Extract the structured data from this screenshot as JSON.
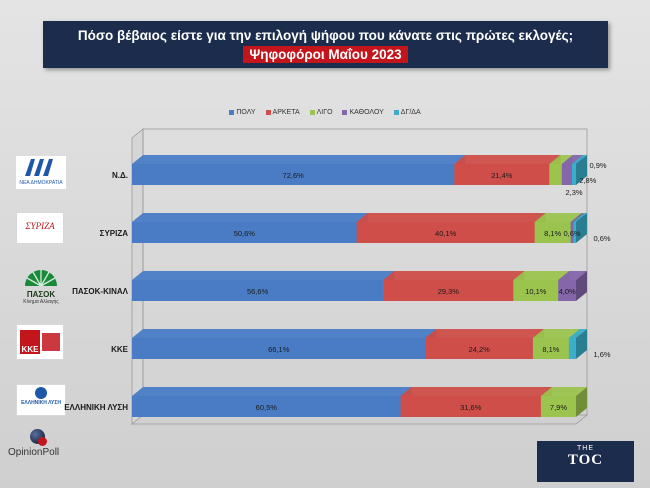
{
  "header": {
    "title": "Πόσο βέβαιος είστε για την επιλογή ψήφου που κάνατε στις πρώτες εκλογές;",
    "subtitle": "Ψηφοφόροι Μαΐου 2023"
  },
  "colors": {
    "title_bg": "#1c2c4c",
    "subtitle_bg": "#c2161c"
  },
  "logos": [
    {
      "icon": "nd-logo-icon",
      "text": "ΝΕΑ ΔΗΜΟΚΡΑΤΙΑ"
    },
    {
      "icon": "syriza-logo-icon",
      "text": "ΣΥΡΙΖΑ"
    },
    {
      "icon": "pasok-logo-icon",
      "text": "ΠΑΣΟΚ",
      "subtext": "Κίνημα Αλλαγής"
    },
    {
      "icon": "kke-logo-icon",
      "text": "ΚΚΕ"
    },
    {
      "icon": "elliniki-lysi-logo-icon",
      "text": "ΕΛΛΗΝΙΚΗ ΛΥΣΗ"
    }
  ],
  "branding": {
    "pollster": "OpinionPoll",
    "toc_small": "THE",
    "toc_main": "TOC"
  },
  "chart_data": {
    "type": "bar",
    "orientation": "horizontal",
    "stacked": true,
    "percent": true,
    "categories": [
      "Ν.Δ.",
      "ΣΥΡΙΖΑ",
      "ΠΑΣΟΚ-ΚΙΝΑΛ",
      "ΚΚΕ",
      "ΕΛΛΗΝΙΚΗ ΛΥΣΗ"
    ],
    "series": [
      {
        "name": "ΠΟΛΥ",
        "color": "#4a7cc6",
        "values": [
          72.6,
          50.6,
          56.6,
          66.1,
          60.5
        ]
      },
      {
        "name": "ΑΡΚΕΤΑ",
        "color": "#cf4e4a",
        "values": [
          21.4,
          40.1,
          29.3,
          24.2,
          31.6
        ]
      },
      {
        "name": "ΛΙΓΟ",
        "color": "#9bc44e",
        "values": [
          2.8,
          8.1,
          10.1,
          8.1,
          7.9
        ]
      },
      {
        "name": "ΚΑΘΟΛΟΥ",
        "color": "#8566ab",
        "values": [
          2.3,
          0.6,
          4.0,
          0,
          0
        ]
      },
      {
        "name": "ΔΓ/ΔΑ",
        "color": "#3bafc9",
        "values": [
          0.9,
          0.6,
          0,
          1.6,
          0
        ]
      }
    ],
    "labels": [
      [
        "72,6%",
        "21,4%",
        "2,8%",
        "2,3%",
        "0,9%"
      ],
      [
        "50,6%",
        "40,1%",
        "8,1%",
        "0,6%",
        "0,6%"
      ],
      [
        "56,6%",
        "29,3%",
        "10,1%",
        "4,0%",
        ""
      ],
      [
        "66,1%",
        "24,2%",
        "8,1%",
        "",
        "1,6%"
      ],
      [
        "60,5%",
        "31,6%",
        "7,9%",
        "",
        ""
      ]
    ],
    "xlim": [
      0,
      100
    ],
    "legend_position": "top",
    "grid": false
  }
}
